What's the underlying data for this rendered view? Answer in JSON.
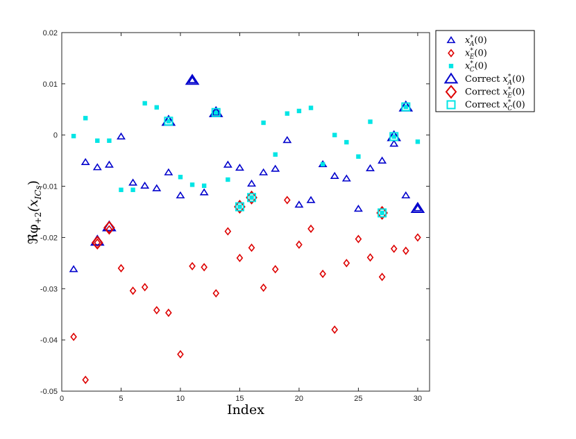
{
  "chart_data": {
    "type": "scatter",
    "title": "",
    "xlabel": "Index",
    "ylabel": "ℜφ",
    "ylabel_sub": "+2",
    "ylabel_arg": "(x",
    "ylabel_arg_sub": "ICs",
    "ylabel_arg_close": ")",
    "xlim": [
      0,
      31
    ],
    "ylim": [
      -0.05,
      0.02
    ],
    "xticks": [
      0,
      5,
      10,
      15,
      20,
      25,
      30
    ],
    "xtick_labels": [
      "0",
      "5",
      "10",
      "15",
      "20",
      "25",
      "30"
    ],
    "yticks": [
      -0.05,
      -0.04,
      -0.03,
      -0.02,
      -0.01,
      0,
      0.01,
      0.02
    ],
    "ytick_labels": [
      "-0.05",
      "-0.04",
      "-0.03",
      "-0.02",
      "-0.01",
      "0",
      "0.01",
      "0.02"
    ],
    "grid": false,
    "legend_position": "outside-top-right",
    "legend": [
      {
        "base": "x",
        "sup": "*",
        "sub": "A",
        "tail": "(0)",
        "prefix": ""
      },
      {
        "base": "x",
        "sup": "*",
        "sub": "E",
        "tail": "(0)",
        "prefix": ""
      },
      {
        "base": "x",
        "sup": "*",
        "sub": "C",
        "tail": "(0)",
        "prefix": ""
      },
      {
        "base": "x",
        "sup": "*",
        "sub": "A",
        "tail": "(0)",
        "prefix": "Correct "
      },
      {
        "base": "x",
        "sup": "*",
        "sub": "E",
        "tail": "(0)",
        "prefix": "Correct "
      },
      {
        "base": "x",
        "sup": "*",
        "sub": "C",
        "tail": "(0)",
        "prefix": "Correct "
      }
    ],
    "series": [
      {
        "key": "A",
        "marker": "triangle",
        "color": "#0000cc",
        "size": "small",
        "x": [
          1,
          2,
          3,
          4,
          5,
          6,
          7,
          8,
          9,
          10,
          11,
          12,
          13,
          14,
          15,
          16,
          17,
          18,
          19,
          20,
          21,
          22,
          23,
          24,
          25,
          26,
          27,
          28,
          29,
          30
        ],
        "y": [
          -0.0262,
          -0.0053,
          -0.0063,
          -0.0058,
          -0.0003,
          -0.0093,
          -0.0099,
          -0.0104,
          -0.0073,
          -0.0118,
          0.0107,
          -0.0112,
          0.0044,
          -0.0058,
          -0.0064,
          -0.0095,
          -0.0073,
          -0.0066,
          -0.001,
          -0.0136,
          -0.0127,
          -0.0057,
          -0.008,
          -0.0085,
          -0.0144,
          -0.0065,
          -0.005,
          -0.0017,
          -0.0118,
          -0.0143
        ]
      },
      {
        "key": "E",
        "marker": "diamond",
        "color": "#dd0000",
        "size": "small",
        "x": [
          1,
          2,
          3,
          4,
          5,
          6,
          7,
          8,
          9,
          10,
          11,
          12,
          13,
          14,
          15,
          16,
          17,
          18,
          19,
          20,
          21,
          22,
          23,
          24,
          25,
          26,
          27,
          28,
          29,
          30
        ],
        "y": [
          -0.0394,
          -0.0478,
          -0.021,
          -0.0184,
          -0.026,
          -0.0304,
          -0.0297,
          -0.0342,
          -0.0347,
          -0.0428,
          -0.0256,
          -0.0258,
          -0.0309,
          -0.0188,
          -0.024,
          -0.022,
          -0.0298,
          -0.0262,
          -0.0127,
          -0.0214,
          -0.0183,
          -0.0271,
          -0.038,
          -0.025,
          -0.0203,
          -0.0239,
          -0.0277,
          -0.0222,
          -0.0226,
          -0.02
        ]
      },
      {
        "key": "C",
        "marker": "square",
        "color": "#00e5e5",
        "size": "small",
        "x": [
          1,
          2,
          3,
          4,
          5,
          6,
          7,
          8,
          9,
          10,
          11,
          12,
          13,
          14,
          15,
          16,
          17,
          18,
          19,
          20,
          21,
          22,
          23,
          24,
          25,
          26,
          27,
          28,
          29,
          30
        ],
        "y": [
          -0.0002,
          0.0033,
          -0.0011,
          -0.0011,
          -0.0107,
          -0.0107,
          0.0062,
          0.0054,
          0.0027,
          -0.0082,
          -0.0097,
          -0.0099,
          0.0044,
          -0.0087,
          -0.014,
          -0.0122,
          0.0024,
          -0.0038,
          0.0042,
          0.0047,
          0.0053,
          -0.0057,
          0.0,
          -0.0014,
          -0.0042,
          0.0026,
          -0.0152,
          -0.0003,
          0.0055,
          -0.0013
        ]
      },
      {
        "key": "A",
        "marker": "triangle",
        "color": "#0000cc",
        "size": "large",
        "x": [
          3,
          4,
          9,
          11,
          13,
          28,
          29,
          30
        ],
        "y": [
          -0.0207,
          -0.0179,
          0.0027,
          0.0107,
          0.0044,
          -0.0003,
          0.0055,
          -0.0143
        ]
      },
      {
        "key": "E",
        "marker": "diamond",
        "color": "#dd0000",
        "size": "large",
        "x": [
          3,
          4,
          15,
          16,
          27
        ],
        "y": [
          -0.021,
          -0.0181,
          -0.014,
          -0.0122,
          -0.0152
        ]
      },
      {
        "key": "C",
        "marker": "square",
        "color": "#00e5e5",
        "size": "large",
        "x": [
          9,
          13,
          15,
          16,
          27,
          28,
          29
        ],
        "y": [
          0.0027,
          0.0044,
          -0.014,
          -0.0122,
          -0.0152,
          -0.0003,
          0.0055
        ]
      }
    ]
  }
}
